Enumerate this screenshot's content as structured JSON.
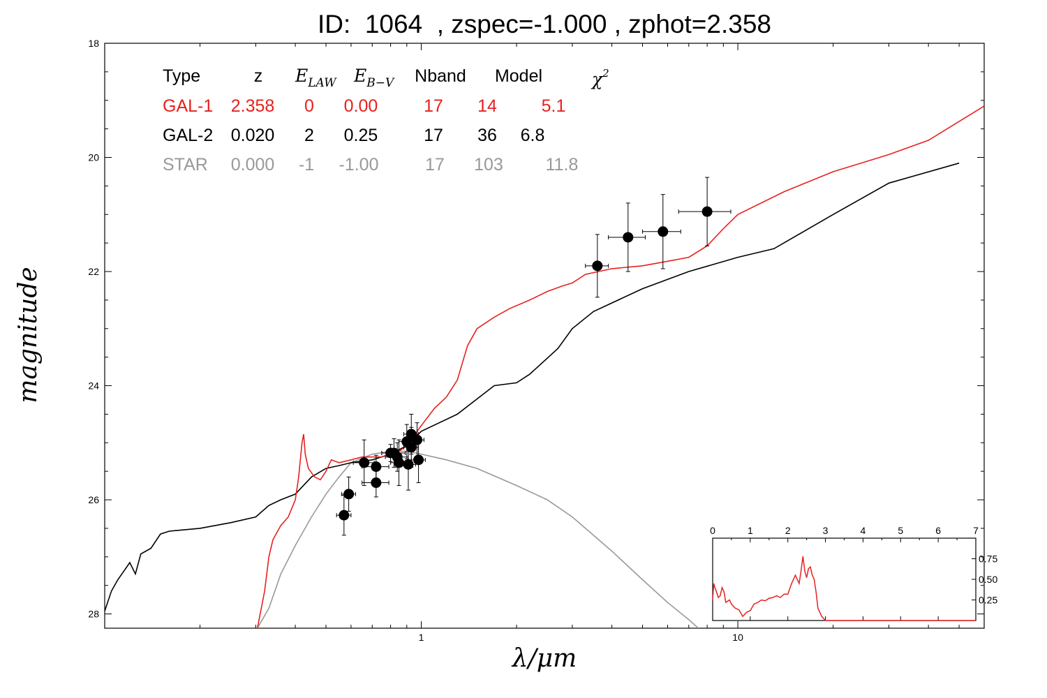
{
  "title": "ID:  1064  , zspec=-1.000 , zphot=2.358",
  "colors": {
    "gal1": "#e8201e",
    "gal2": "#000000",
    "star": "#999999",
    "points": "#000000"
  },
  "legend": {
    "headers": [
      "Type",
      "z",
      "E_LAW",
      "E_B-V",
      "Nband",
      "Model",
      "χ²"
    ],
    "rows": [
      {
        "type": "GAL-1",
        "z": "2.358",
        "elaw": "0",
        "ebv": "0.00",
        "nband": "17",
        "model": "14",
        "chi2": "5.1"
      },
      {
        "type": "GAL-2",
        "z": "0.020",
        "elaw": "2",
        "ebv": "0.25",
        "nband": "17",
        "model": "36",
        "chi2": "6.8"
      },
      {
        "type": "STAR",
        "z": "0.000",
        "elaw": "-1",
        "ebv": "-1.00",
        "nband": "17",
        "model": "103",
        "chi2": "11.8"
      }
    ]
  },
  "chart_data": [
    {
      "type": "line",
      "xlabel": "λ/μm",
      "ylabel": "magnitude",
      "xscale": "log",
      "xlim": [
        0.1,
        60
      ],
      "ylim": [
        28.25,
        18
      ],
      "yticks": [
        18,
        20,
        22,
        24,
        26,
        28
      ],
      "xticks": [
        1,
        10
      ],
      "series": [
        {
          "name": "GAL-1",
          "color": "#e8201e",
          "points": [
            [
              0.3,
              28.4
            ],
            [
              0.32,
              27.6
            ],
            [
              0.33,
              27.0
            ],
            [
              0.34,
              26.7
            ],
            [
              0.36,
              26.45
            ],
            [
              0.38,
              26.3
            ],
            [
              0.4,
              26.0
            ],
            [
              0.41,
              25.6
            ],
            [
              0.42,
              25.0
            ],
            [
              0.425,
              24.85
            ],
            [
              0.43,
              25.2
            ],
            [
              0.44,
              25.45
            ],
            [
              0.46,
              25.6
            ],
            [
              0.48,
              25.65
            ],
            [
              0.5,
              25.5
            ],
            [
              0.52,
              25.3
            ],
            [
              0.55,
              25.35
            ],
            [
              0.6,
              25.3
            ],
            [
              0.65,
              25.25
            ],
            [
              0.7,
              25.25
            ],
            [
              0.75,
              25.25
            ],
            [
              0.8,
              25.2
            ],
            [
              0.85,
              25.15
            ],
            [
              0.9,
              25.05
            ],
            [
              1.0,
              24.7
            ],
            [
              1.1,
              24.4
            ],
            [
              1.2,
              24.2
            ],
            [
              1.3,
              23.9
            ],
            [
              1.4,
              23.3
            ],
            [
              1.5,
              23.0
            ],
            [
              1.7,
              22.8
            ],
            [
              1.9,
              22.65
            ],
            [
              2.2,
              22.5
            ],
            [
              2.5,
              22.35
            ],
            [
              2.8,
              22.25
            ],
            [
              3.0,
              22.2
            ],
            [
              3.3,
              22.05
            ],
            [
              4.0,
              21.95
            ],
            [
              5.0,
              21.9
            ],
            [
              6.0,
              21.82
            ],
            [
              7.0,
              21.75
            ],
            [
              8.0,
              21.55
            ],
            [
              9.0,
              21.25
            ],
            [
              10.0,
              21.0
            ],
            [
              14.0,
              20.6
            ],
            [
              20.0,
              20.25
            ],
            [
              30.0,
              19.95
            ],
            [
              40.0,
              19.7
            ],
            [
              60.0,
              19.1
            ]
          ]
        },
        {
          "name": "GAL-2",
          "color": "#000000",
          "points": [
            [
              0.1,
              27.95
            ],
            [
              0.105,
              27.6
            ],
            [
              0.11,
              27.4
            ],
            [
              0.115,
              27.25
            ],
            [
              0.12,
              27.1
            ],
            [
              0.125,
              27.3
            ],
            [
              0.13,
              26.95
            ],
            [
              0.14,
              26.85
            ],
            [
              0.15,
              26.6
            ],
            [
              0.16,
              26.55
            ],
            [
              0.2,
              26.5
            ],
            [
              0.25,
              26.4
            ],
            [
              0.3,
              26.3
            ],
            [
              0.33,
              26.1
            ],
            [
              0.36,
              26.0
            ],
            [
              0.4,
              25.9
            ],
            [
              0.45,
              25.6
            ],
            [
              0.5,
              25.45
            ],
            [
              0.55,
              25.4
            ],
            [
              0.6,
              25.35
            ],
            [
              0.7,
              25.3
            ],
            [
              0.8,
              25.2
            ],
            [
              0.9,
              25.05
            ],
            [
              1.0,
              24.8
            ],
            [
              1.3,
              24.5
            ],
            [
              1.7,
              24.0
            ],
            [
              2.0,
              23.95
            ],
            [
              2.2,
              23.8
            ],
            [
              2.7,
              23.35
            ],
            [
              3.0,
              23.0
            ],
            [
              3.5,
              22.7
            ],
            [
              5.0,
              22.3
            ],
            [
              7.0,
              22.0
            ],
            [
              10.0,
              21.75
            ],
            [
              13.0,
              21.6
            ],
            [
              20.0,
              21.0
            ],
            [
              30.0,
              20.45
            ],
            [
              50.0,
              20.1
            ]
          ]
        },
        {
          "name": "STAR",
          "color": "#999999",
          "points": [
            [
              0.3,
              28.3
            ],
            [
              0.33,
              27.9
            ],
            [
              0.36,
              27.3
            ],
            [
              0.4,
              26.8
            ],
            [
              0.45,
              26.3
            ],
            [
              0.5,
              25.9
            ],
            [
              0.55,
              25.6
            ],
            [
              0.6,
              25.35
            ],
            [
              0.7,
              25.2
            ],
            [
              0.8,
              25.15
            ],
            [
              0.9,
              25.15
            ],
            [
              1.0,
              25.2
            ],
            [
              1.2,
              25.3
            ],
            [
              1.5,
              25.45
            ],
            [
              2.0,
              25.75
            ],
            [
              2.5,
              26.0
            ],
            [
              3.0,
              26.3
            ],
            [
              4.0,
              26.9
            ],
            [
              5.0,
              27.4
            ],
            [
              6.0,
              27.8
            ],
            [
              7.0,
              28.1
            ],
            [
              7.5,
              28.25
            ]
          ]
        }
      ],
      "photometry": [
        {
          "x": 0.57,
          "y": 26.27,
          "dy": 0.35,
          "dx": 0.03
        },
        {
          "x": 0.59,
          "y": 25.9,
          "dy": 0.3,
          "dx": 0.03
        },
        {
          "x": 0.66,
          "y": 25.35,
          "dy": 0.4,
          "dx": 0.05
        },
        {
          "x": 0.72,
          "y": 25.42,
          "dy": 0.2,
          "dx": 0.07
        },
        {
          "x": 0.72,
          "y": 25.7,
          "dy": 0.25,
          "dx": 0.07
        },
        {
          "x": 0.8,
          "y": 25.18,
          "dy": 0.15,
          "dx": 0.05
        },
        {
          "x": 0.82,
          "y": 25.18,
          "dy": 0.25,
          "dx": 0.07
        },
        {
          "x": 0.84,
          "y": 25.25,
          "dy": 0.25,
          "dx": 0.07
        },
        {
          "x": 0.85,
          "y": 25.35,
          "dy": 0.4,
          "dx": 0.05
        },
        {
          "x": 0.9,
          "y": 24.98,
          "dy": 0.3,
          "dx": 0.05
        },
        {
          "x": 0.91,
          "y": 25.38,
          "dy": 0.45,
          "dx": 0.05
        },
        {
          "x": 0.93,
          "y": 25.08,
          "dy": 0.35,
          "dx": 0.05
        },
        {
          "x": 0.93,
          "y": 24.85,
          "dy": 0.35,
          "dx": 0.05
        },
        {
          "x": 0.97,
          "y": 24.95,
          "dy": 0.3,
          "dx": 0.05
        },
        {
          "x": 0.98,
          "y": 25.3,
          "dy": 0.4,
          "dx": 0.05
        },
        {
          "x": 3.6,
          "y": 21.9,
          "dy": 0.55,
          "dx": 0.3
        },
        {
          "x": 4.5,
          "y": 21.4,
          "dy": 0.6,
          "dx": 0.6
        },
        {
          "x": 5.8,
          "y": 21.3,
          "dy": 0.65,
          "dx": 0.8
        },
        {
          "x": 8.0,
          "y": 20.95,
          "dy": 0.6,
          "dx": 1.5
        }
      ]
    },
    {
      "type": "line",
      "name": "PDF(z) inset",
      "xlim": [
        0,
        7
      ],
      "ylim": [
        0,
        1.0
      ],
      "xticks": [
        0,
        1,
        2,
        3,
        4,
        5,
        6,
        7
      ],
      "yticks": [
        0.25,
        0.5,
        0.75
      ],
      "color": "#e8201e",
      "points": [
        [
          0.0,
          0.25
        ],
        [
          0.03,
          0.45
        ],
        [
          0.06,
          0.4
        ],
        [
          0.1,
          0.35
        ],
        [
          0.15,
          0.28
        ],
        [
          0.2,
          0.3
        ],
        [
          0.25,
          0.4
        ],
        [
          0.3,
          0.35
        ],
        [
          0.35,
          0.22
        ],
        [
          0.45,
          0.25
        ],
        [
          0.5,
          0.2
        ],
        [
          0.6,
          0.15
        ],
        [
          0.7,
          0.13
        ],
        [
          0.8,
          0.05
        ],
        [
          0.9,
          0.1
        ],
        [
          1.0,
          0.12
        ],
        [
          1.1,
          0.2
        ],
        [
          1.2,
          0.22
        ],
        [
          1.3,
          0.25
        ],
        [
          1.4,
          0.24
        ],
        [
          1.5,
          0.27
        ],
        [
          1.6,
          0.28
        ],
        [
          1.7,
          0.3
        ],
        [
          1.8,
          0.28
        ],
        [
          1.9,
          0.32
        ],
        [
          2.0,
          0.32
        ],
        [
          2.1,
          0.45
        ],
        [
          2.2,
          0.55
        ],
        [
          2.25,
          0.5
        ],
        [
          2.3,
          0.45
        ],
        [
          2.35,
          0.6
        ],
        [
          2.4,
          0.78
        ],
        [
          2.45,
          0.6
        ],
        [
          2.5,
          0.52
        ],
        [
          2.55,
          0.63
        ],
        [
          2.6,
          0.65
        ],
        [
          2.65,
          0.55
        ],
        [
          2.7,
          0.5
        ],
        [
          2.75,
          0.35
        ],
        [
          2.8,
          0.15
        ],
        [
          2.9,
          0.05
        ],
        [
          3.0,
          0.0
        ],
        [
          7.0,
          0.0
        ]
      ]
    }
  ]
}
